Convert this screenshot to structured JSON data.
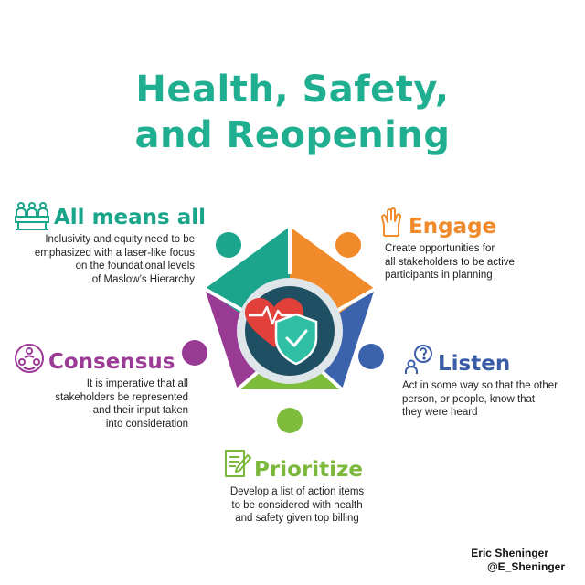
{
  "title": {
    "line1": "Health, Safety,",
    "line2": "and Reopening"
  },
  "sections": {
    "all_means_all": {
      "title": "All means all",
      "lines": [
        "Inclusivity and equity need to be",
        "emphasized with a laser-like focus",
        "on the foundational levels",
        "of Maslow’s Hierarchy"
      ],
      "color": "#19a58a",
      "icon": "classroom-icon"
    },
    "engage": {
      "title": "Engage",
      "lines": [
        "Create opportunities for",
        "all stakeholders to be active",
        "participants in planning"
      ],
      "color": "#f08a2a",
      "icon": "raised-hands-icon"
    },
    "consensus": {
      "title": "Consensus",
      "lines": [
        "It is imperative that all",
        "stakeholders be represented",
        "and their input taken",
        "into consideration"
      ],
      "color": "#9b3b96",
      "icon": "people-circle-icon"
    },
    "listen": {
      "title": "Listen",
      "lines": [
        "Act in some way so that the other",
        "person, or people, know that",
        "they were heard"
      ],
      "color": "#3b5da8",
      "icon": "person-question-icon"
    },
    "prioritize": {
      "title": "Prioritize",
      "lines": [
        "Develop a list of action items",
        "to be considered with health",
        "and safety given top billing"
      ],
      "color": "#7cb83b",
      "icon": "checklist-icon"
    }
  },
  "center": {
    "icon": "heart-shield-icon",
    "ring_color": "#dfe6ea",
    "core_color": "#1f4f63"
  },
  "credit": {
    "name": "Eric Sheninger",
    "handle": "@E_Sheninger"
  }
}
